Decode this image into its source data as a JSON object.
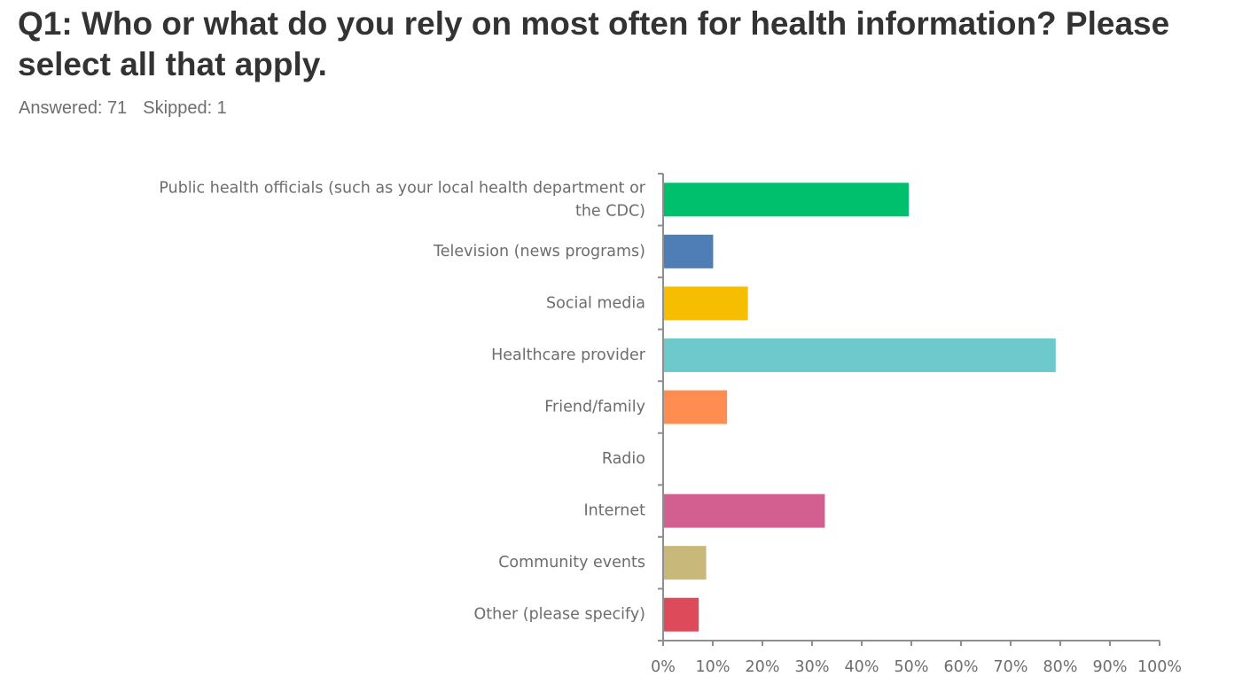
{
  "title": "Q1: Who or what do you rely on most often for health information? Please select all that apply.",
  "stats": {
    "answered": "Answered: 71",
    "skipped": "Skipped: 1"
  },
  "chart_data": {
    "type": "bar",
    "orientation": "horizontal",
    "categories": [
      "Public health officials (such as your local health department or the CDC)",
      "Television (news programs)",
      "Social media",
      "Healthcare provider",
      "Friend/family",
      "Radio",
      "Internet",
      "Community events",
      "Other (please specify)"
    ],
    "category_lines": [
      [
        "Public health officials (such as your local health department or",
        "the CDC)"
      ],
      [
        "Television (news programs)"
      ],
      [
        "Social media"
      ],
      [
        "Healthcare provider"
      ],
      [
        "Friend/family"
      ],
      [
        "Radio"
      ],
      [
        "Internet"
      ],
      [
        "Community events"
      ],
      [
        "Other (please specify)"
      ]
    ],
    "values": [
      49.3,
      9.9,
      16.9,
      78.9,
      12.7,
      0,
      32.4,
      8.5,
      7.0
    ],
    "colors": [
      "#00c06e",
      "#4f7eb7",
      "#f6be00",
      "#6dc9cc",
      "#ff8c51",
      "#a8a8a8",
      "#d35f91",
      "#c8b87a",
      "#dd4b5b"
    ],
    "xlim": [
      0,
      100
    ],
    "xticks": [
      "0%",
      "10%",
      "20%",
      "30%",
      "40%",
      "50%",
      "60%",
      "70%",
      "80%",
      "90%",
      "100%"
    ],
    "grid": false,
    "axis_color": "#8f8f8f"
  }
}
